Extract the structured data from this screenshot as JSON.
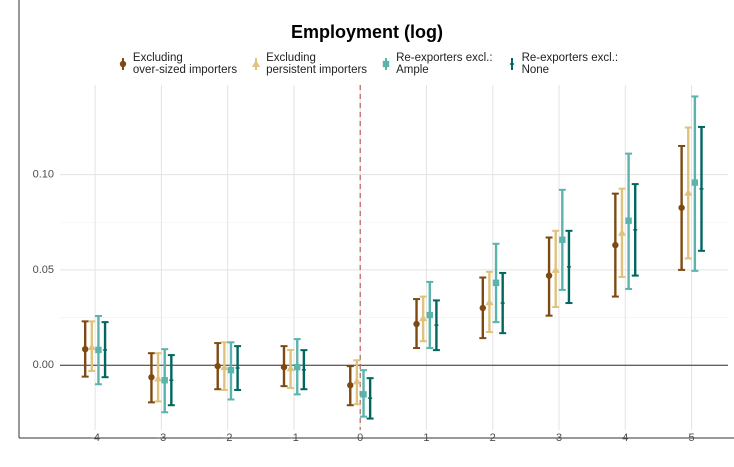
{
  "chart_data": {
    "type": "errorbar",
    "title": "Employment (log)",
    "x": [
      -4,
      -3,
      -2,
      -1,
      0,
      1,
      2,
      3,
      4,
      5
    ],
    "xlim": [
      -4.53,
      5.55
    ],
    "ylim": [
      -0.034,
      0.147
    ],
    "yticks": [
      {
        "value": 0,
        "label": "0.00"
      },
      {
        "value": 0.05,
        "label": "0.05"
      },
      {
        "value": 0.1,
        "label": "0.10"
      }
    ],
    "grid": true,
    "hline": 0,
    "vline": 0,
    "series": [
      {
        "name": "Excluding\nover-sized importers",
        "color": "#7f4a12",
        "marker": "circle",
        "values": [
          0.0084,
          -0.0063,
          -0.0005,
          -0.001,
          -0.0105,
          0.0216,
          0.03,
          0.047,
          0.063,
          0.0826
        ],
        "lower": [
          -0.006,
          -0.0195,
          -0.0126,
          -0.011,
          -0.021,
          0.009,
          0.0142,
          0.026,
          0.036,
          0.05
        ],
        "upper": [
          0.023,
          0.0063,
          0.0116,
          0.01,
          -0.0005,
          0.0347,
          0.046,
          0.067,
          0.09,
          0.115
        ]
      },
      {
        "name": "Excluding\npersistent importers",
        "color": "#dfc27d",
        "marker": "triangle",
        "values": [
          0.0095,
          -0.007,
          -0.001,
          -0.0016,
          -0.0084,
          0.0247,
          0.033,
          0.05,
          0.0695,
          0.0905
        ],
        "lower": [
          -0.003,
          -0.019,
          -0.013,
          -0.012,
          -0.0205,
          0.0126,
          0.0174,
          0.0305,
          0.0463,
          0.056
        ],
        "upper": [
          0.023,
          0.0063,
          0.012,
          0.008,
          0.0026,
          0.036,
          0.049,
          0.0705,
          0.0926,
          0.1247
        ]
      },
      {
        "name": "Re-exporters excl.:\nAmple",
        "color": "#5ab4ac",
        "marker": "square",
        "values": [
          0.008,
          -0.0079,
          -0.0026,
          -0.001,
          -0.0153,
          0.0263,
          0.0432,
          0.0658,
          0.0758,
          0.0958
        ],
        "lower": [
          -0.01,
          -0.0247,
          -0.018,
          -0.0153,
          -0.027,
          0.009,
          0.0226,
          0.0395,
          0.04,
          0.0495
        ],
        "upper": [
          0.0258,
          0.0084,
          0.012,
          0.0137,
          -0.0026,
          0.0437,
          0.0637,
          0.092,
          0.111,
          0.141
        ]
      },
      {
        "name": "Re-exporters excl.:\nNone",
        "color": "#01665e",
        "marker": "dash",
        "values": [
          0.008,
          -0.0079,
          -0.0015,
          -0.0024,
          -0.0173,
          0.021,
          0.0326,
          0.0516,
          0.071,
          0.0925
        ],
        "lower": [
          -0.0063,
          -0.021,
          -0.013,
          -0.0126,
          -0.028,
          0.0079,
          0.0168,
          0.0326,
          0.047,
          0.06
        ],
        "upper": [
          0.0226,
          0.0053,
          0.01,
          0.0079,
          -0.0068,
          0.034,
          0.0484,
          0.0705,
          0.095,
          0.125
        ]
      }
    ]
  }
}
